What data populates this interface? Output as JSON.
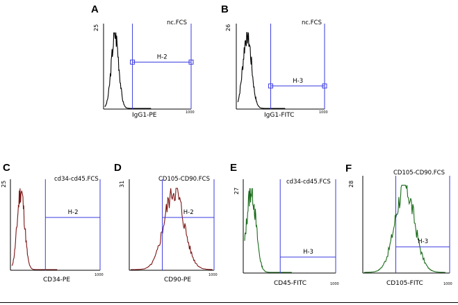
{
  "chart_data": [
    {
      "panel": "A",
      "type": "histogram",
      "file": "nc.FCS",
      "ymax_label": "25",
      "xlabel": "IgG1-PE",
      "x_tick": "1000",
      "gate": {
        "name": "H-2",
        "from": 0.33,
        "to": 1.0,
        "level": 0.55,
        "markers": true
      },
      "color": "#000000",
      "peak": 0.22,
      "width": 0.08,
      "seed": 3
    },
    {
      "panel": "B",
      "type": "histogram",
      "file": "nc.FCS",
      "ymax_label": "26",
      "xlabel": "IgG1-FITC",
      "x_tick": "1000",
      "gate": {
        "name": "H-3",
        "from": 0.39,
        "to": 1.0,
        "level": 0.27,
        "markers": true
      },
      "color": "#000000",
      "peak": 0.2,
      "width": 0.09,
      "seed": 7
    },
    {
      "panel": "C",
      "type": "histogram",
      "file": "cd34-cd45.FCS",
      "ymax_label": "25",
      "xlabel": "CD34-PE",
      "x_tick": "1000",
      "gate": {
        "name": "H-2",
        "from": 0.39,
        "to": 1.0,
        "level": 0.58,
        "markers": false
      },
      "color": "#7b1414",
      "peak": 0.2,
      "width": 0.08,
      "seed": 11
    },
    {
      "panel": "D",
      "type": "histogram",
      "file": "CD105-CD90.FCS",
      "ymax_label": "31",
      "xlabel": "CD90-PE",
      "x_tick": "1000",
      "gate": {
        "name": "H-2",
        "from": 0.39,
        "to": 1.0,
        "level": 0.58,
        "markers": false
      },
      "color": "#7b1414",
      "peak": 0.53,
      "width": 0.12,
      "seed": 5
    },
    {
      "panel": "E",
      "type": "histogram",
      "file": "cd34-cd45.FCS",
      "ymax_label": "27",
      "xlabel": "CD45-FITC",
      "x_tick": "1000",
      "gate": {
        "name": "H-3",
        "from": 0.4,
        "to": 1.0,
        "level": 0.17,
        "markers": false
      },
      "color": "#1a6b1a",
      "peak": 0.14,
      "width": 0.1,
      "seed": 13
    },
    {
      "panel": "F",
      "type": "histogram",
      "file": "CD105-CD90.FCS",
      "ymax_label": "28",
      "xlabel": "CD105-FITC",
      "x_tick": "1000",
      "gate": {
        "name": "H-3",
        "from": 0.38,
        "to": 1.0,
        "level": 0.27,
        "markers": false
      },
      "color": "#1a6b1a",
      "peak": 0.5,
      "width": 0.12,
      "seed": 17
    }
  ],
  "colors": {
    "gate": "#3a3ae0"
  }
}
